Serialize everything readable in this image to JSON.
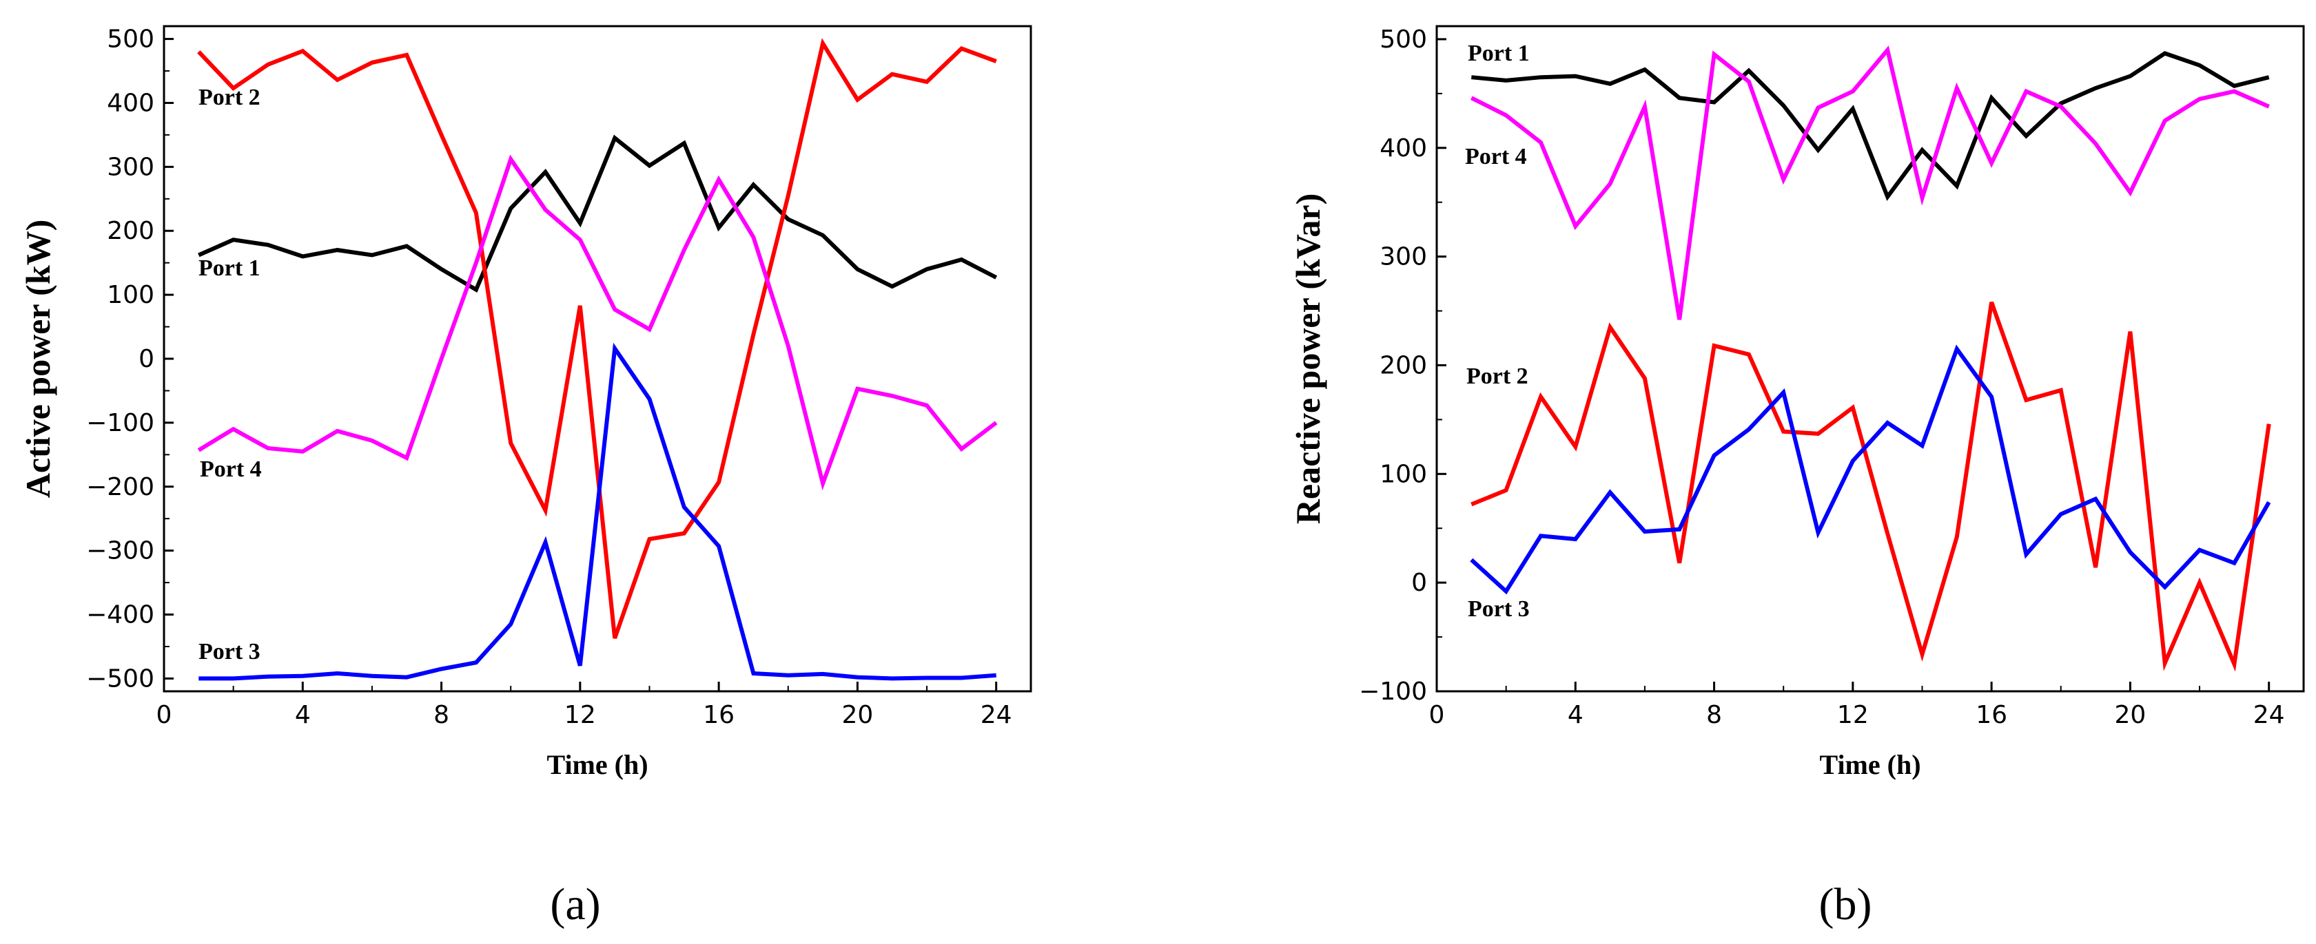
{
  "chart_data": [
    {
      "type": "line",
      "panel_label": "(a)",
      "title": "",
      "xlabel": "Time (h)",
      "ylabel": "Active power (kW)",
      "xlim": [
        0,
        25
      ],
      "ylim": [
        -520,
        520
      ],
      "xticks": [
        0,
        4,
        8,
        12,
        16,
        20,
        24
      ],
      "yticks": [
        -500,
        -400,
        -300,
        -200,
        -100,
        0,
        100,
        200,
        300,
        400,
        500
      ],
      "x": [
        1,
        2,
        3,
        4,
        5,
        6,
        7,
        8,
        9,
        10,
        11,
        12,
        13,
        14,
        15,
        16,
        17,
        18,
        19,
        20,
        21,
        22,
        23,
        24
      ],
      "grid": false,
      "legend": "inline labels",
      "series": [
        {
          "name": "Port 1",
          "color": "#000000",
          "label": "Port 1",
          "values": [
            162,
            186,
            178,
            160,
            170,
            162,
            176,
            140,
            108,
            235,
            292,
            212,
            345,
            302,
            337,
            205,
            272,
            218,
            193,
            140,
            113,
            140,
            155,
            127
          ]
        },
        {
          "name": "Port 2",
          "color": "#ff0000",
          "label": "Port 2",
          "values": [
            480,
            423,
            460,
            481,
            436,
            463,
            475,
            350,
            228,
            -132,
            -237,
            83,
            -437,
            -282,
            -273,
            -193,
            38,
            255,
            493,
            405,
            445,
            433,
            485,
            465
          ]
        },
        {
          "name": "Port 3",
          "color": "#0000ff",
          "label": "Port 3",
          "values": [
            -500,
            -500,
            -497,
            -496,
            -492,
            -496,
            -498,
            -485,
            -475,
            -415,
            -287,
            -480,
            16,
            -63,
            -232,
            -293,
            -492,
            -495,
            -493,
            -498,
            -500,
            -499,
            -499,
            -495
          ]
        },
        {
          "name": "Port 4",
          "color": "#ff00ff",
          "label": "Port 4",
          "values": [
            -143,
            -110,
            -140,
            -145,
            -113,
            -128,
            -155,
            0,
            150,
            312,
            233,
            186,
            77,
            46,
            170,
            280,
            190,
            20,
            -195,
            -47,
            -58,
            -73,
            -141,
            -100
          ]
        }
      ]
    },
    {
      "type": "line",
      "panel_label": "(b)",
      "title": "",
      "xlabel": "Time (h)",
      "ylabel": "Reactive power (kVar)",
      "xlim": [
        0,
        25
      ],
      "ylim": [
        -100,
        512
      ],
      "xticks": [
        0,
        4,
        8,
        12,
        16,
        20,
        24
      ],
      "yticks": [
        -100,
        0,
        100,
        200,
        300,
        400,
        500
      ],
      "x": [
        1,
        2,
        3,
        4,
        5,
        6,
        7,
        8,
        9,
        10,
        11,
        12,
        13,
        14,
        15,
        16,
        17,
        18,
        19,
        20,
        21,
        22,
        23,
        24
      ],
      "grid": false,
      "legend": "inline labels",
      "series": [
        {
          "name": "Port 1",
          "color": "#000000",
          "label": "Port 1",
          "values": [
            465,
            462,
            465,
            466,
            459,
            472,
            446,
            442,
            471,
            439,
            398,
            436,
            355,
            398,
            365,
            446,
            411,
            441,
            455,
            466,
            487,
            476,
            457,
            465
          ]
        },
        {
          "name": "Port 2",
          "color": "#ff0000",
          "label": "Port 2",
          "values": [
            72,
            85,
            171,
            125,
            235,
            188,
            18,
            218,
            210,
            139,
            137,
            161,
            45,
            -66,
            42,
            258,
            168,
            177,
            14,
            231,
            -74,
            0,
            -75,
            146
          ]
        },
        {
          "name": "Port 3",
          "color": "#0000ff",
          "label": "Port 3",
          "values": [
            21,
            -8,
            43,
            40,
            83,
            47,
            49,
            117,
            141,
            175,
            46,
            112,
            147,
            126,
            215,
            171,
            26,
            63,
            77,
            28,
            -4,
            30,
            18,
            74
          ]
        },
        {
          "name": "Port 4",
          "color": "#ff00ff",
          "label": "Port 4",
          "values": [
            446,
            430,
            405,
            328,
            367,
            438,
            242,
            486,
            461,
            371,
            437,
            452,
            490,
            354,
            455,
            386,
            452,
            438,
            404,
            359,
            425,
            445,
            452,
            438
          ]
        }
      ]
    }
  ]
}
